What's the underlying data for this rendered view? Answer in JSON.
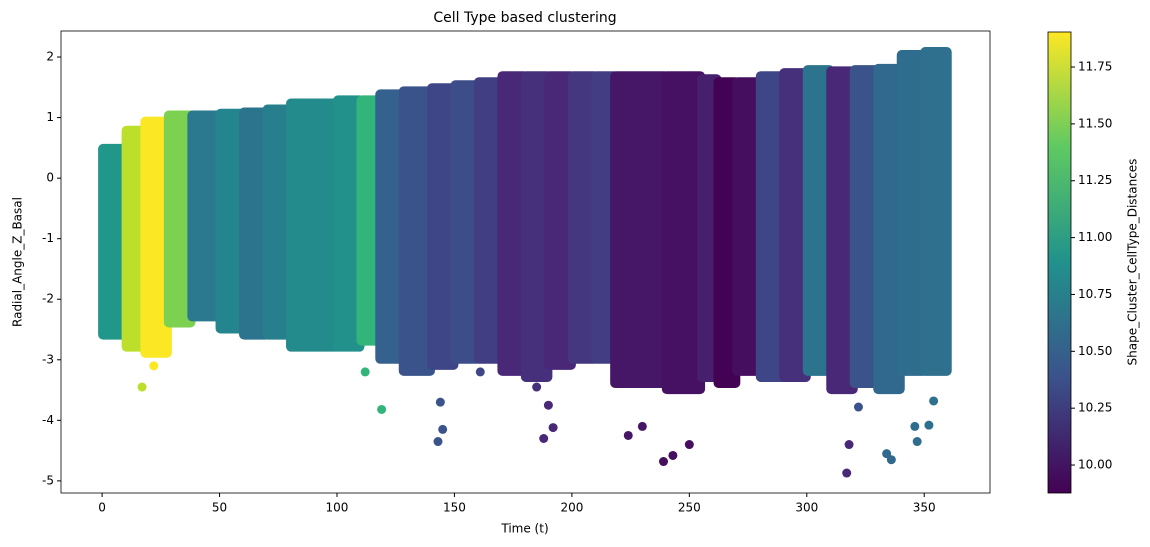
{
  "chart_data": {
    "type": "scatter",
    "title": "Cell Type based clustering",
    "x_label": "Time (t)",
    "y_label": "Radial_Angle_Z_Basal",
    "colorbar_label": "Shape_Cluster_CellType_Distances",
    "colormap": "viridis",
    "xlim": [
      -17.5,
      378
    ],
    "xticks": [
      0,
      50,
      100,
      150,
      200,
      250,
      300,
      350
    ],
    "ylim": [
      -5.2,
      2.43
    ],
    "yticks": [
      -5,
      -4,
      -3,
      -2,
      -1,
      0,
      1,
      2
    ],
    "clim": [
      9.877,
      11.904
    ],
    "cticks": [
      {
        "value": 10,
        "label": "10.00"
      },
      {
        "value": 10.25,
        "label": "10.25"
      },
      {
        "value": 10.5,
        "label": "10.50"
      },
      {
        "value": 10.75,
        "label": "10.75"
      },
      {
        "value": 11,
        "label": "11.00"
      },
      {
        "value": 11.25,
        "label": "11.25"
      },
      {
        "value": 11.5,
        "label": "11.50"
      },
      {
        "value": 11.75,
        "label": "11.75"
      }
    ],
    "bands": [
      {
        "x": [
          0,
          10
        ],
        "y": [
          -2.6,
          0.5
        ],
        "c": 10.95
      },
      {
        "x": [
          10,
          18
        ],
        "y": [
          -2.8,
          0.8
        ],
        "c": 11.7
      },
      {
        "x": [
          18,
          28
        ],
        "y": [
          -2.9,
          0.95
        ],
        "c": 11.9
      },
      {
        "x": [
          28,
          38
        ],
        "y": [
          -2.4,
          1.05
        ],
        "c": 11.5
      },
      {
        "x": [
          38,
          50
        ],
        "y": [
          -2.3,
          1.05
        ],
        "c": 10.7
      },
      {
        "x": [
          50,
          60
        ],
        "y": [
          -2.5,
          1.08
        ],
        "c": 10.8
      },
      {
        "x": [
          60,
          70
        ],
        "y": [
          -2.6,
          1.1
        ],
        "c": 10.65
      },
      {
        "x": [
          70,
          80
        ],
        "y": [
          -2.6,
          1.15
        ],
        "c": 10.75
      },
      {
        "x": [
          80,
          100
        ],
        "y": [
          -2.8,
          1.25
        ],
        "c": 10.85
      },
      {
        "x": [
          100,
          110
        ],
        "y": [
          -2.8,
          1.3
        ],
        "c": 10.9
      },
      {
        "x": [
          110,
          118
        ],
        "y": [
          -2.7,
          1.3
        ],
        "c": 11.2
      },
      {
        "x": [
          118,
          128
        ],
        "y": [
          -3.0,
          1.4
        ],
        "c": 10.5
      },
      {
        "x": [
          128,
          140
        ],
        "y": [
          -3.2,
          1.45
        ],
        "c": 10.4
      },
      {
        "x": [
          140,
          150
        ],
        "y": [
          -3.1,
          1.5
        ],
        "c": 10.3
      },
      {
        "x": [
          150,
          160
        ],
        "y": [
          -3.0,
          1.55
        ],
        "c": 10.35
      },
      {
        "x": [
          160,
          170
        ],
        "y": [
          -3.0,
          1.6
        ],
        "c": 10.25
      },
      {
        "x": [
          170,
          180
        ],
        "y": [
          -3.2,
          1.7
        ],
        "c": 10.1
      },
      {
        "x": [
          180,
          190
        ],
        "y": [
          -3.3,
          1.7
        ],
        "c": 10.15
      },
      {
        "x": [
          190,
          200
        ],
        "y": [
          -3.1,
          1.7
        ],
        "c": 10.1
      },
      {
        "x": [
          200,
          210
        ],
        "y": [
          -3.0,
          1.7
        ],
        "c": 10.2
      },
      {
        "x": [
          210,
          218
        ],
        "y": [
          -3.0,
          1.7
        ],
        "c": 10.25
      },
      {
        "x": [
          218,
          240
        ],
        "y": [
          -3.4,
          1.7
        ],
        "c": 10.0
      },
      {
        "x": [
          240,
          255
        ],
        "y": [
          -3.5,
          1.7
        ],
        "c": 9.97
      },
      {
        "x": [
          255,
          262
        ],
        "y": [
          -3.3,
          1.65
        ],
        "c": 10.05
      },
      {
        "x": [
          262,
          270
        ],
        "y": [
          -3.4,
          1.6
        ],
        "c": 9.88
      },
      {
        "x": [
          270,
          280
        ],
        "y": [
          -3.2,
          1.6
        ],
        "c": 9.95
      },
      {
        "x": [
          280,
          290
        ],
        "y": [
          -3.3,
          1.7
        ],
        "c": 10.3
      },
      {
        "x": [
          290,
          300
        ],
        "y": [
          -3.3,
          1.75
        ],
        "c": 10.15
      },
      {
        "x": [
          300,
          310
        ],
        "y": [
          -3.2,
          1.8
        ],
        "c": 10.65
      },
      {
        "x": [
          310,
          320
        ],
        "y": [
          -3.5,
          1.78
        ],
        "c": 10.1
      },
      {
        "x": [
          320,
          330
        ],
        "y": [
          -3.4,
          1.8
        ],
        "c": 10.4
      },
      {
        "x": [
          330,
          340
        ],
        "y": [
          -3.5,
          1.82
        ],
        "c": 10.55
      },
      {
        "x": [
          340,
          350
        ],
        "y": [
          -3.2,
          2.05
        ],
        "c": 10.6
      },
      {
        "x": [
          350,
          360
        ],
        "y": [
          -3.2,
          2.1
        ],
        "c": 10.62
      }
    ],
    "points": [
      [
        17,
        -3.45,
        11.7
      ],
      [
        22,
        -3.1,
        11.9
      ],
      [
        112,
        -3.2,
        11.2
      ],
      [
        119,
        -3.82,
        11.2
      ],
      [
        143,
        -4.35,
        10.4
      ],
      [
        145,
        -4.15,
        10.4
      ],
      [
        144,
        -3.7,
        10.4
      ],
      [
        161,
        -3.2,
        10.3
      ],
      [
        185,
        -3.45,
        10.15
      ],
      [
        188,
        -4.3,
        10.1
      ],
      [
        190,
        -3.75,
        10.1
      ],
      [
        192,
        -4.12,
        10.1
      ],
      [
        224,
        -4.25,
        10.0
      ],
      [
        230,
        -4.1,
        10.0
      ],
      [
        239,
        -4.68,
        9.95
      ],
      [
        243,
        -4.58,
        9.95
      ],
      [
        250,
        -4.4,
        9.95
      ],
      [
        317,
        -4.87,
        10.1
      ],
      [
        318,
        -4.4,
        10.1
      ],
      [
        322,
        -3.78,
        10.4
      ],
      [
        334,
        -4.55,
        10.55
      ],
      [
        336,
        -4.65,
        10.55
      ],
      [
        346,
        -4.1,
        10.6
      ],
      [
        347,
        -4.35,
        10.6
      ],
      [
        352,
        -4.08,
        10.62
      ],
      [
        354,
        -3.68,
        10.62
      ]
    ]
  }
}
